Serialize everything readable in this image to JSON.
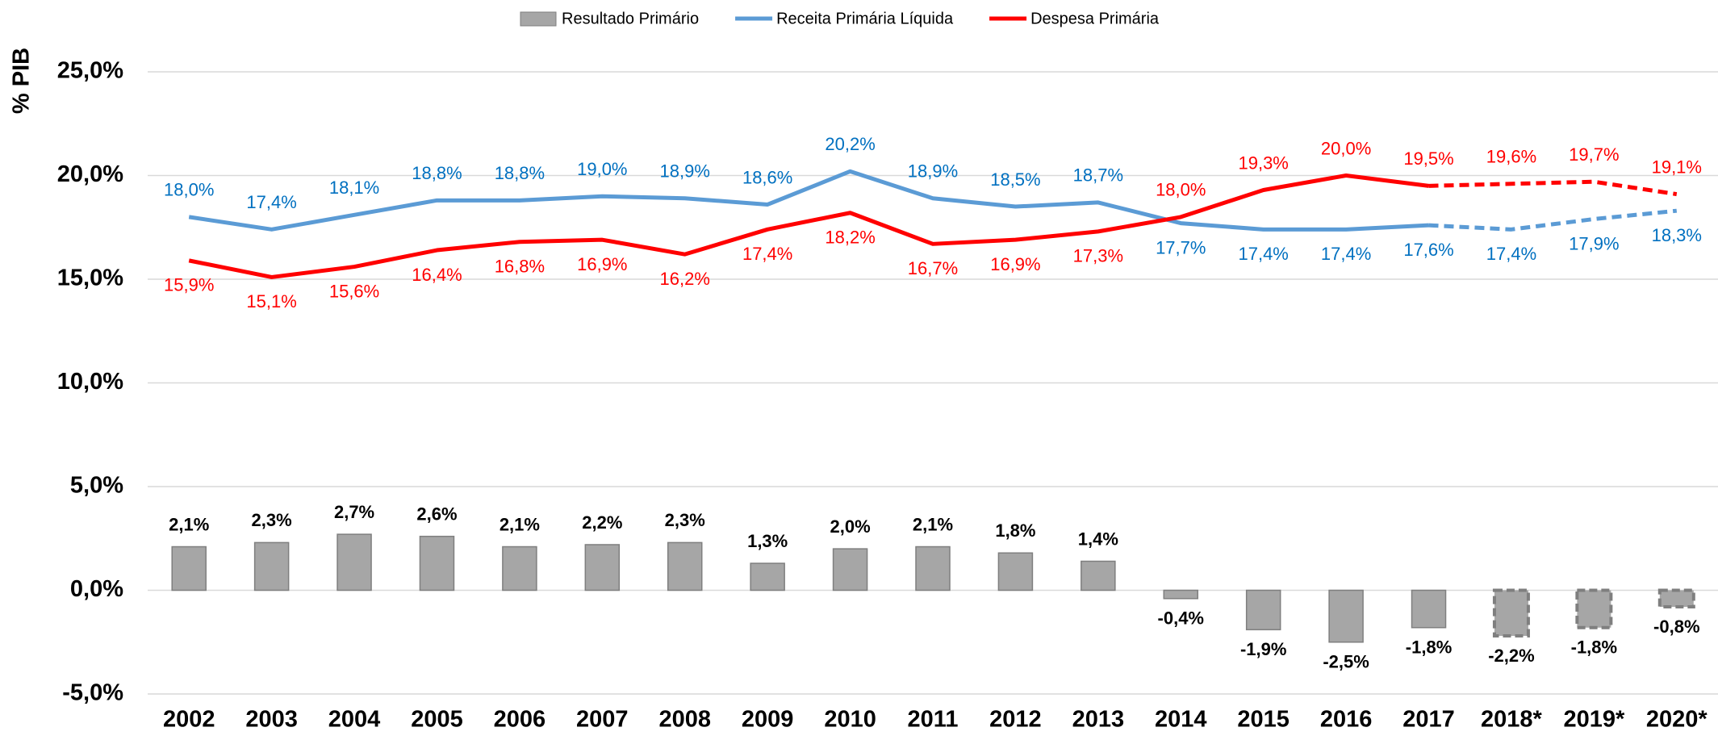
{
  "chart_data": {
    "type": "bar-line",
    "y_axis_label": "% PIB",
    "categories": [
      "2002",
      "2003",
      "2004",
      "2005",
      "2006",
      "2007",
      "2008",
      "2009",
      "2010",
      "2011",
      "2012",
      "2013",
      "2014",
      "2015",
      "2016",
      "2017",
      "2018*",
      "2019*",
      "2020*"
    ],
    "series": [
      {
        "name": "Resultado Primário",
        "type": "bar",
        "color": "#a6a6a6",
        "label_color": "#000000",
        "values": [
          2.1,
          2.3,
          2.7,
          2.6,
          2.1,
          2.2,
          2.3,
          1.3,
          2.0,
          2.1,
          1.8,
          1.4,
          -0.4,
          -1.9,
          -2.5,
          -1.8,
          -2.2,
          -1.8,
          -0.8
        ],
        "value_labels": [
          "2,1%",
          "2,3%",
          "2,7%",
          "2,6%",
          "2,1%",
          "2,2%",
          "2,3%",
          "1,3%",
          "2,0%",
          "2,1%",
          "1,8%",
          "1,4%",
          "-0,4%",
          "-1,9%",
          "-2,5%",
          "-1,8%",
          "-2,2%",
          "-1,8%",
          "-0,8%"
        ]
      },
      {
        "name": "Receita Primária Líquida",
        "type": "line",
        "color": "#5b9bd5",
        "label_color": "#0070c0",
        "values": [
          18.0,
          17.4,
          18.1,
          18.8,
          18.8,
          19.0,
          18.9,
          18.6,
          20.2,
          18.9,
          18.5,
          18.7,
          17.7,
          17.4,
          17.4,
          17.6,
          17.4,
          17.9,
          18.3
        ],
        "value_labels": [
          "18,0%",
          "17,4%",
          "18,1%",
          "18,8%",
          "18,8%",
          "19,0%",
          "18,9%",
          "18,6%",
          "20,2%",
          "18,9%",
          "18,5%",
          "18,7%",
          "17,7%",
          "17,4%",
          "17,4%",
          "17,6%",
          "17,4%",
          "17,9%",
          "18,3%"
        ]
      },
      {
        "name": "Despesa Primária",
        "type": "line",
        "color": "#ff0000",
        "label_color": "#ff0000",
        "values": [
          15.9,
          15.1,
          15.6,
          16.4,
          16.8,
          16.9,
          16.2,
          17.4,
          18.2,
          16.7,
          16.9,
          17.3,
          18.0,
          19.3,
          20.0,
          19.5,
          19.6,
          19.7,
          19.1
        ],
        "value_labels": [
          "15,9%",
          "15,1%",
          "15,6%",
          "16,4%",
          "16,8%",
          "16,9%",
          "16,2%",
          "17,4%",
          "18,2%",
          "16,7%",
          "16,9%",
          "17,3%",
          "18,0%",
          "19,3%",
          "20,0%",
          "19,5%",
          "19,6%",
          "19,7%",
          "19,1%"
        ]
      }
    ],
    "ylim": [
      -5,
      25
    ],
    "yticks": [
      {
        "value": -5,
        "label": "-5,0%"
      },
      {
        "value": 0,
        "label": "0,0%"
      },
      {
        "value": 5,
        "label": "5,0%"
      },
      {
        "value": 10,
        "label": "10,0%"
      },
      {
        "value": 15,
        "label": "15,0%"
      },
      {
        "value": 20,
        "label": "20,0%"
      },
      {
        "value": 25,
        "label": "25,0%"
      }
    ],
    "grid": true,
    "legend": "top"
  }
}
